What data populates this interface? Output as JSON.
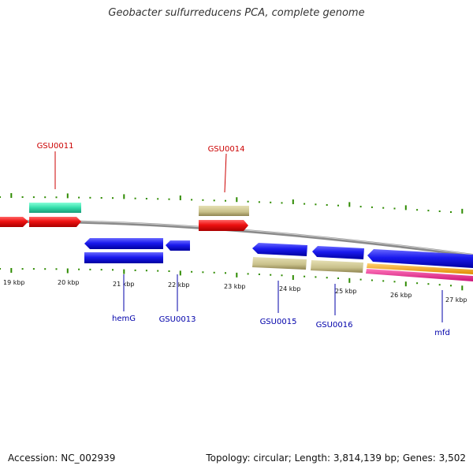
{
  "title": "Geobacter sulfurreducens PCA, complete genome",
  "footer": {
    "accession": "Accession: NC_002939",
    "topology": "Topology: circular; Length: 3,814,139 bp; Genes: 3,502"
  },
  "colors": {
    "forward_label": "#cc0000",
    "reverse_label": "#0000aa",
    "backbone": "#888888",
    "tick": "#2e8b00",
    "cds_red": "#ee1111",
    "cds_blue": "#1a1aee",
    "teal": "#33ddaa",
    "khaki": "#c8c08a",
    "orange": "#ffa500",
    "magenta": "#ee2288"
  },
  "scale": {
    "labels": [
      "19 kbp",
      "20 kbp",
      "21 kbp",
      "22 kbp",
      "23 kbp",
      "24 kbp",
      "25 kbp",
      "26 kbp",
      "27 kbp"
    ]
  },
  "gene_labels": {
    "forward": [
      "GSU0011",
      "GSU0014"
    ],
    "reverse": [
      "hemG",
      "GSU0013",
      "GSU0015",
      "GSU0016",
      "mfd"
    ]
  }
}
